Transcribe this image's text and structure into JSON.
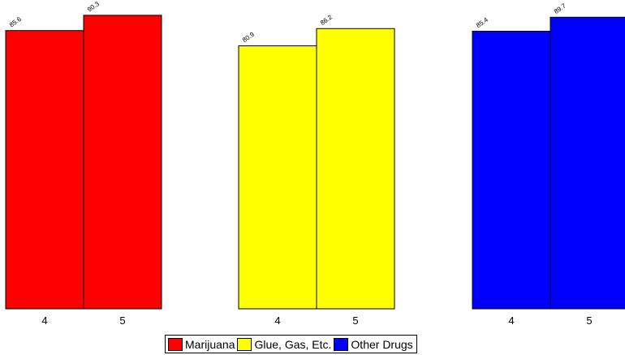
{
  "chart_data": {
    "type": "bar",
    "ylim": [
      0,
      95
    ],
    "grid": false,
    "legend_position": "bottom",
    "groups": [
      {
        "name": "Marijuana",
        "color": "#ff0000",
        "categories": [
          "4",
          "5"
        ],
        "values": [
          85.6,
          90.3
        ],
        "value_labels": [
          "85.6",
          "90.3"
        ]
      },
      {
        "name": "Glue, Gas, Etc.",
        "color": "#ffff00",
        "categories": [
          "4",
          "5"
        ],
        "values": [
          80.9,
          86.2
        ],
        "value_labels": [
          "80.9",
          "86.2"
        ]
      },
      {
        "name": "Other Drugs",
        "color": "#0000ff",
        "categories": [
          "4",
          "5"
        ],
        "values": [
          85.4,
          89.7
        ],
        "value_labels": [
          "85.4",
          "89.7"
        ]
      }
    ]
  },
  "legend": {
    "items": [
      {
        "label": "Marijuana",
        "color": "#ff0000"
      },
      {
        "label": "Glue, Gas, Etc.",
        "color": "#ffff00"
      },
      {
        "label": "Other Drugs",
        "color": "#0000ff"
      }
    ]
  }
}
